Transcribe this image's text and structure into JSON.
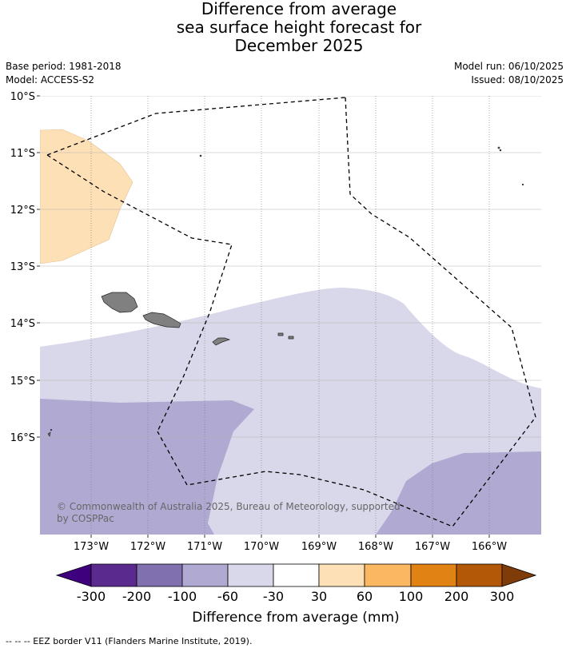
{
  "title": {
    "line1": "Difference from average",
    "line2": "sea surface height forecast for",
    "line3": "December 2025"
  },
  "meta": {
    "base_period": "Base period: 1981-2018",
    "model": "Model: ACCESS-S2",
    "model_run": "Model run: 06/10/2025",
    "issued": "Issued: 08/10/2025"
  },
  "axes": {
    "lat_labels": [
      "10°S",
      "11°S",
      "12°S",
      "13°S",
      "14°S",
      "15°S",
      "16°S"
    ],
    "lon_labels": [
      "173°W",
      "172°W",
      "171°W",
      "170°W",
      "169°W",
      "168°W",
      "167°W",
      "166°W"
    ]
  },
  "copyright": {
    "line1": "© Commonwealth of Australia 2025, Bureau of Meteorology, supported",
    "line2": "by COSPPac"
  },
  "colorbar": {
    "title": "Difference from average (mm)",
    "ticks": [
      "-300",
      "-200",
      "-100",
      "-60",
      "-30",
      "30",
      "60",
      "100",
      "200",
      "300"
    ],
    "colors": [
      "#3f007d",
      "#5b2a8f",
      "#8070b0",
      "#b0aad2",
      "#d8d8ea",
      "#ffffff",
      "#fee0b6",
      "#fbb762",
      "#e08214",
      "#b35806",
      "#7f3b08"
    ]
  },
  "footnote": "-- -- -- EEZ border V11 (Flanders Marine Institute, 2019)."
}
